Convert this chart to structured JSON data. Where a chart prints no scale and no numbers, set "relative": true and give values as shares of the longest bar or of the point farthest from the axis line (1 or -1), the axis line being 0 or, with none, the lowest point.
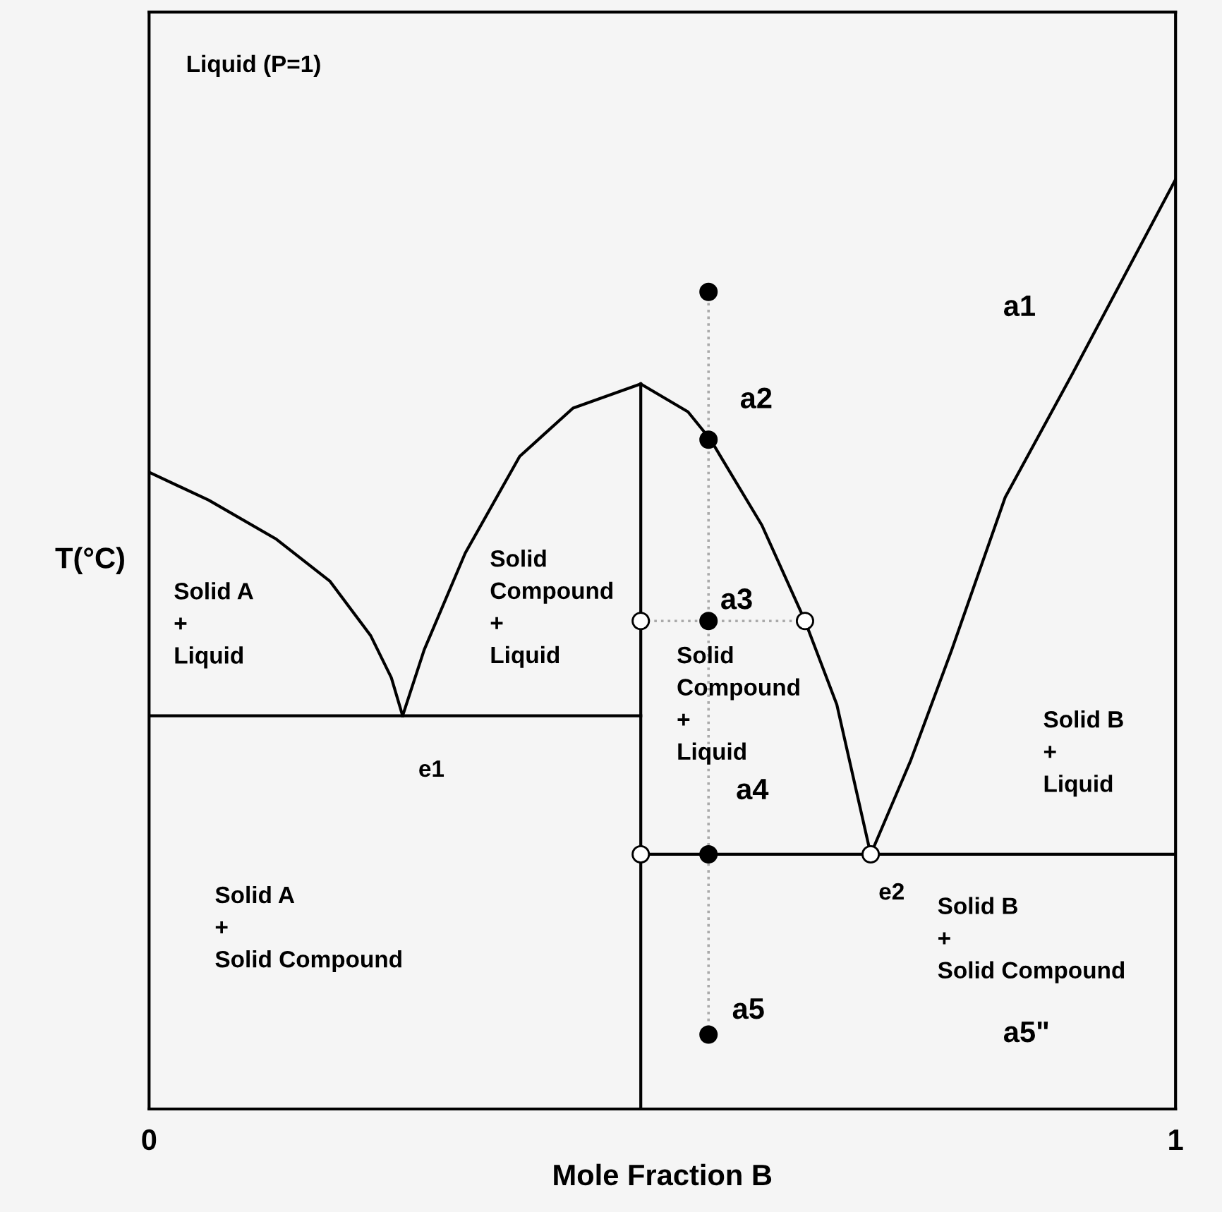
{
  "chart_data": {
    "type": "line",
    "relative": true,
    "xlabel": "Mole Fraction B",
    "ylabel": "T(°C)",
    "xlim": [
      0,
      1
    ],
    "xticks": [
      0,
      1
    ],
    "tick_labels": "x",
    "legend": false,
    "series": [
      {
        "color": "#000000",
        "line_style": "solid",
        "marker": "none",
        "x": [
          0,
          0.058,
          0.124,
          0.176,
          0.216,
          0.236,
          0.247
        ],
        "values": [
          0.685,
          0.655,
          0.613,
          0.568,
          0.509,
          0.464,
          0.423
        ]
      },
      {
        "color": "#000000",
        "line_style": "solid",
        "marker": "none",
        "x": [
          0.247,
          0.268,
          0.308,
          0.361,
          0.413,
          0.479
        ],
        "values": [
          0.423,
          0.494,
          0.598,
          0.702,
          0.754,
          0.78
        ]
      },
      {
        "color": "#000000",
        "line_style": "solid",
        "marker": "none",
        "x": [
          0.479,
          0.525,
          0.547,
          0.597,
          0.639,
          0.67,
          0.703
        ],
        "values": [
          0.78,
          0.75,
          0.72,
          0.628,
          0.525,
          0.435,
          0.274
        ]
      },
      {
        "color": "#000000",
        "line_style": "solid",
        "marker": "none",
        "x": [
          0.703,
          0.742,
          0.782,
          0.834,
          0.9,
          1.0
        ],
        "values": [
          0.274,
          0.375,
          0.494,
          0.658,
          0.792,
          1.0
        ]
      },
      {
        "color": "#000000",
        "line_style": "solid",
        "marker": "none",
        "x": [
          0,
          0.479
        ],
        "values": [
          0.423,
          0.423
        ]
      },
      {
        "color": "#000000",
        "line_style": "solid",
        "marker": "none",
        "x": [
          0.479,
          0.479
        ],
        "values": [
          0,
          0.78
        ]
      },
      {
        "color": "#000000",
        "line_style": "solid",
        "marker": "none",
        "x": [
          0.479,
          1.0
        ],
        "values": [
          0.274,
          0.274
        ]
      },
      {
        "color": "#aaaaaa",
        "line_style": "dotted",
        "marker": "none",
        "x": [
          0.545,
          0.545
        ],
        "values": [
          0.08,
          0.879
        ]
      },
      {
        "color": "#aaaaaa",
        "line_style": "dotted",
        "marker": "none",
        "x": [
          0.479,
          0.639
        ],
        "values": [
          0.525,
          0.525
        ]
      },
      {
        "type": "scatter",
        "color": "#000000",
        "marker": "circle",
        "x": [
          0.545,
          0.545,
          0.545,
          0.545,
          0.545
        ],
        "values": [
          0.879,
          0.72,
          0.525,
          0.274,
          0.08
        ]
      },
      {
        "type": "scatter",
        "color": "#ffffff",
        "marker": "circle",
        "x": [
          0.479,
          0.639,
          0.479,
          0.703
        ],
        "values": [
          0.525,
          0.525,
          0.274,
          0.274
        ]
      }
    ],
    "annotations": [
      "Liquid (P=1)",
      "Solid A\n+\nLiquid",
      "Solid\nCompound\n+\nLiquid",
      "Solid\nCompound\n+\nLiquid",
      "Solid B\n+\nLiquid",
      "Solid A\n+\nSolid Compound",
      "Solid B\n+\nSolid Compound",
      "a1",
      "a5\"",
      {
        "text": "a2",
        "x": 0.545,
        "y": 0.72
      },
      {
        "text": "a3",
        "x": 0.545,
        "y": 0.525
      },
      {
        "text": "a4",
        "x": 0.545,
        "y": 0.274
      },
      {
        "text": "a5",
        "x": 0.545,
        "y": 0.08
      },
      {
        "text": "e1",
        "x": 0.247,
        "y": 0.423
      },
      {
        "text": "e2",
        "x": 0.703,
        "y": 0.274
      }
    ]
  }
}
